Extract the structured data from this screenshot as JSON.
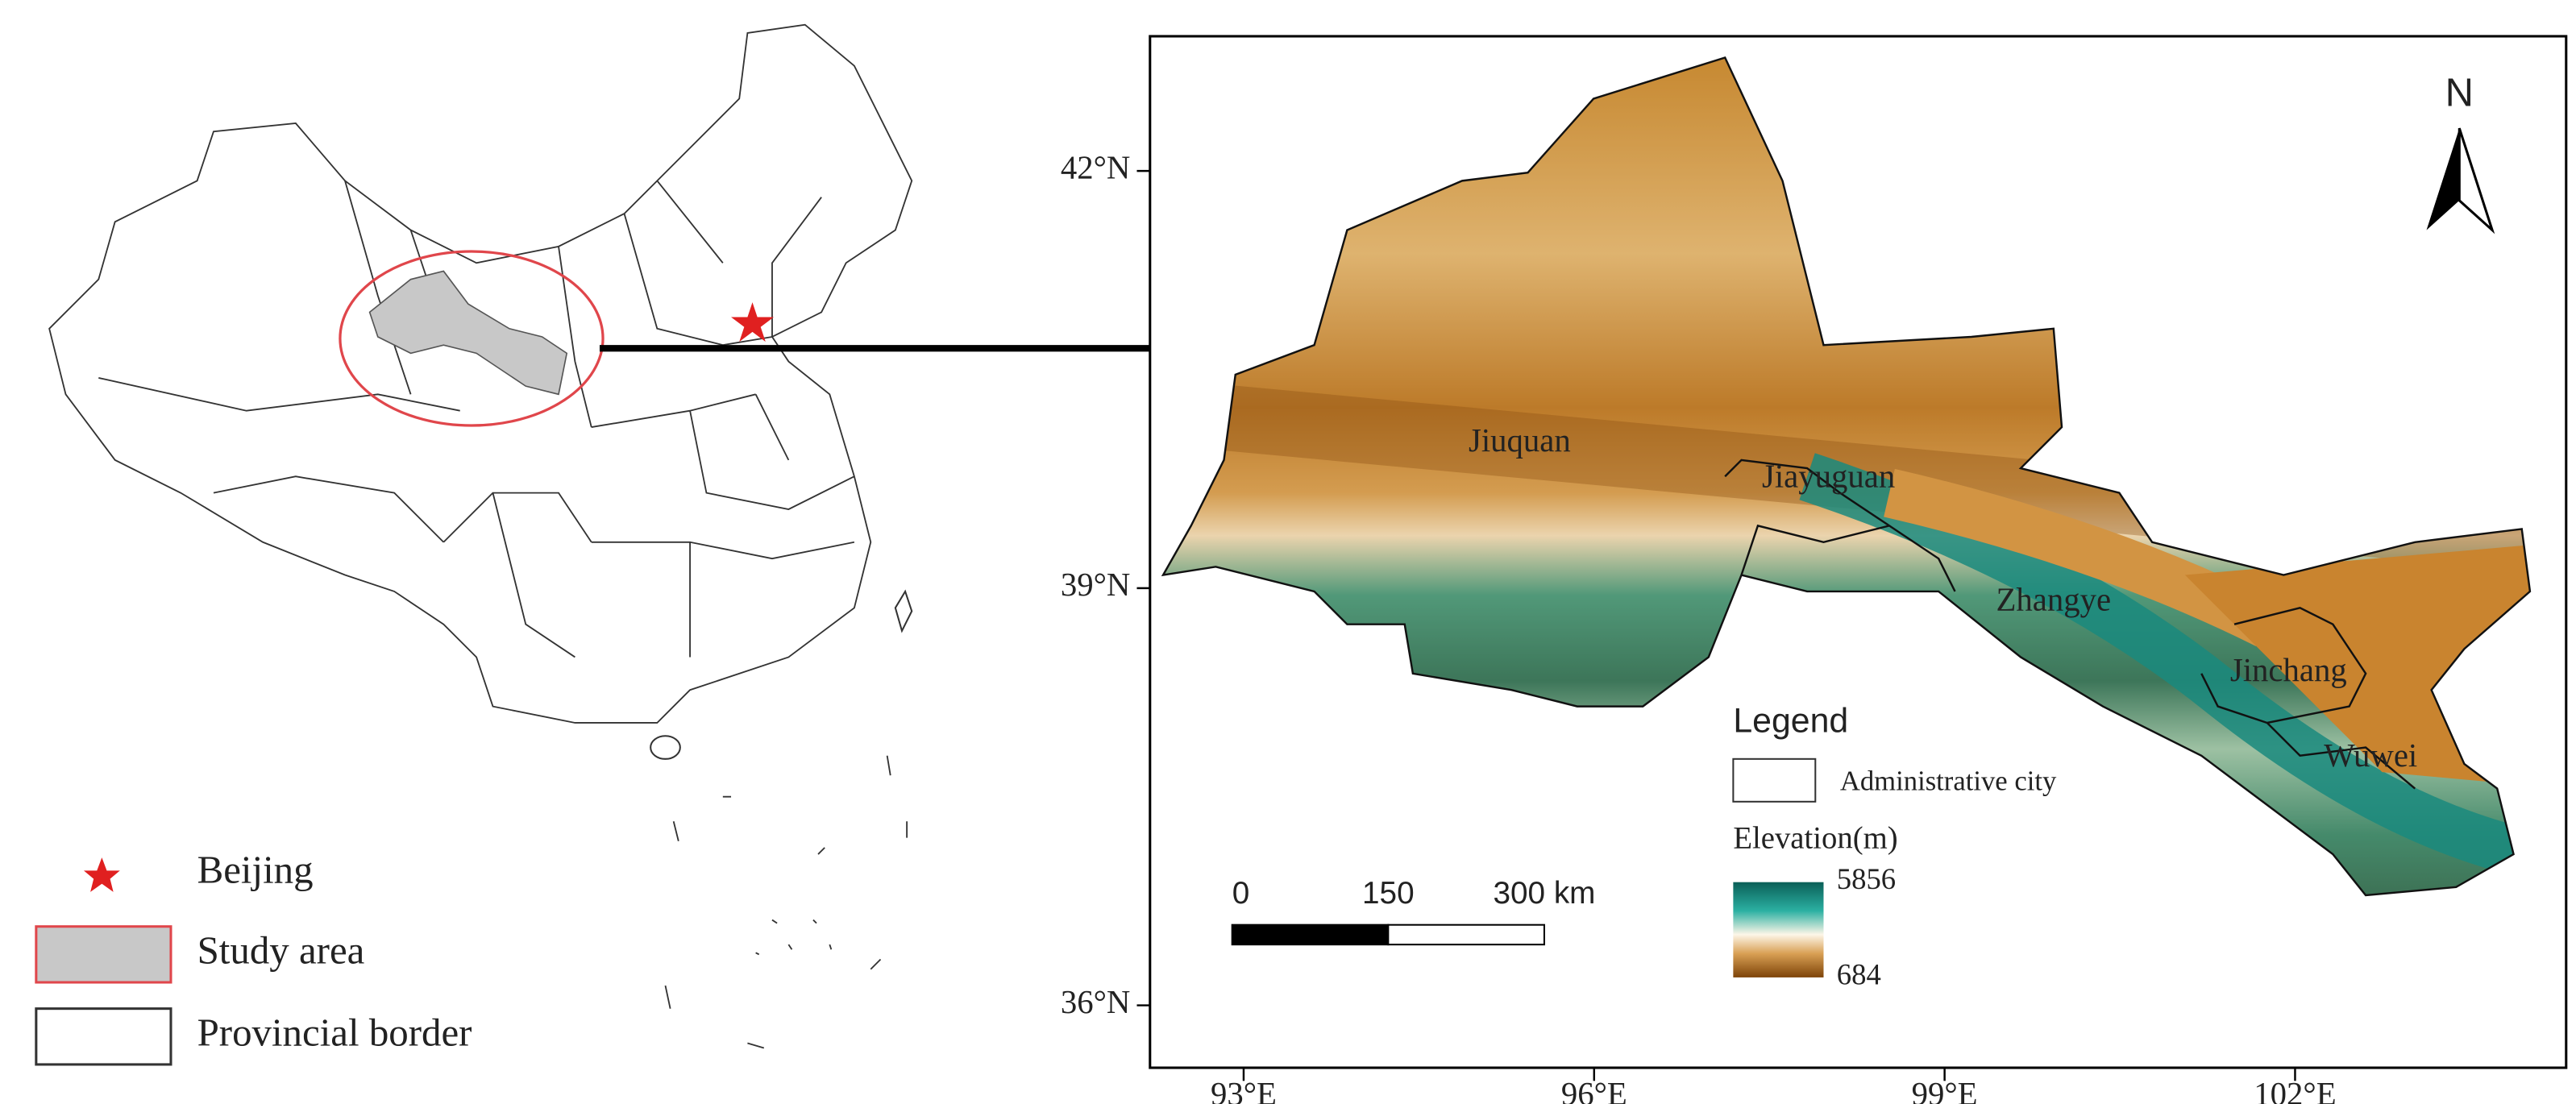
{
  "left_map": {
    "legend": [
      "Beijing",
      "Study area",
      "Provincial border"
    ]
  },
  "right_map": {
    "north": "N",
    "lat_ticks": [
      {
        "value": 42,
        "label": "42°N"
      },
      {
        "value": 39,
        "label": "39°N"
      },
      {
        "value": 36,
        "label": "36°N"
      }
    ],
    "lon_ticks": [
      {
        "value": 93,
        "label": "93°E"
      },
      {
        "value": 96,
        "label": "96°E"
      },
      {
        "value": 99,
        "label": "99°E"
      },
      {
        "value": 102,
        "label": "102°E"
      }
    ],
    "cities": [
      "Jiuquan",
      "Jiayuguan",
      "Zhangye",
      "Jinchang",
      "Wuwei"
    ],
    "legend": {
      "title": "Legend",
      "boundary": "Administrative city",
      "elevation_title": "Elevation(m)",
      "elevation_range": [
        5856,
        684
      ]
    },
    "scale_bar": [
      0,
      150,
      {
        "value": 300,
        "label": "300 km"
      }
    ]
  }
}
